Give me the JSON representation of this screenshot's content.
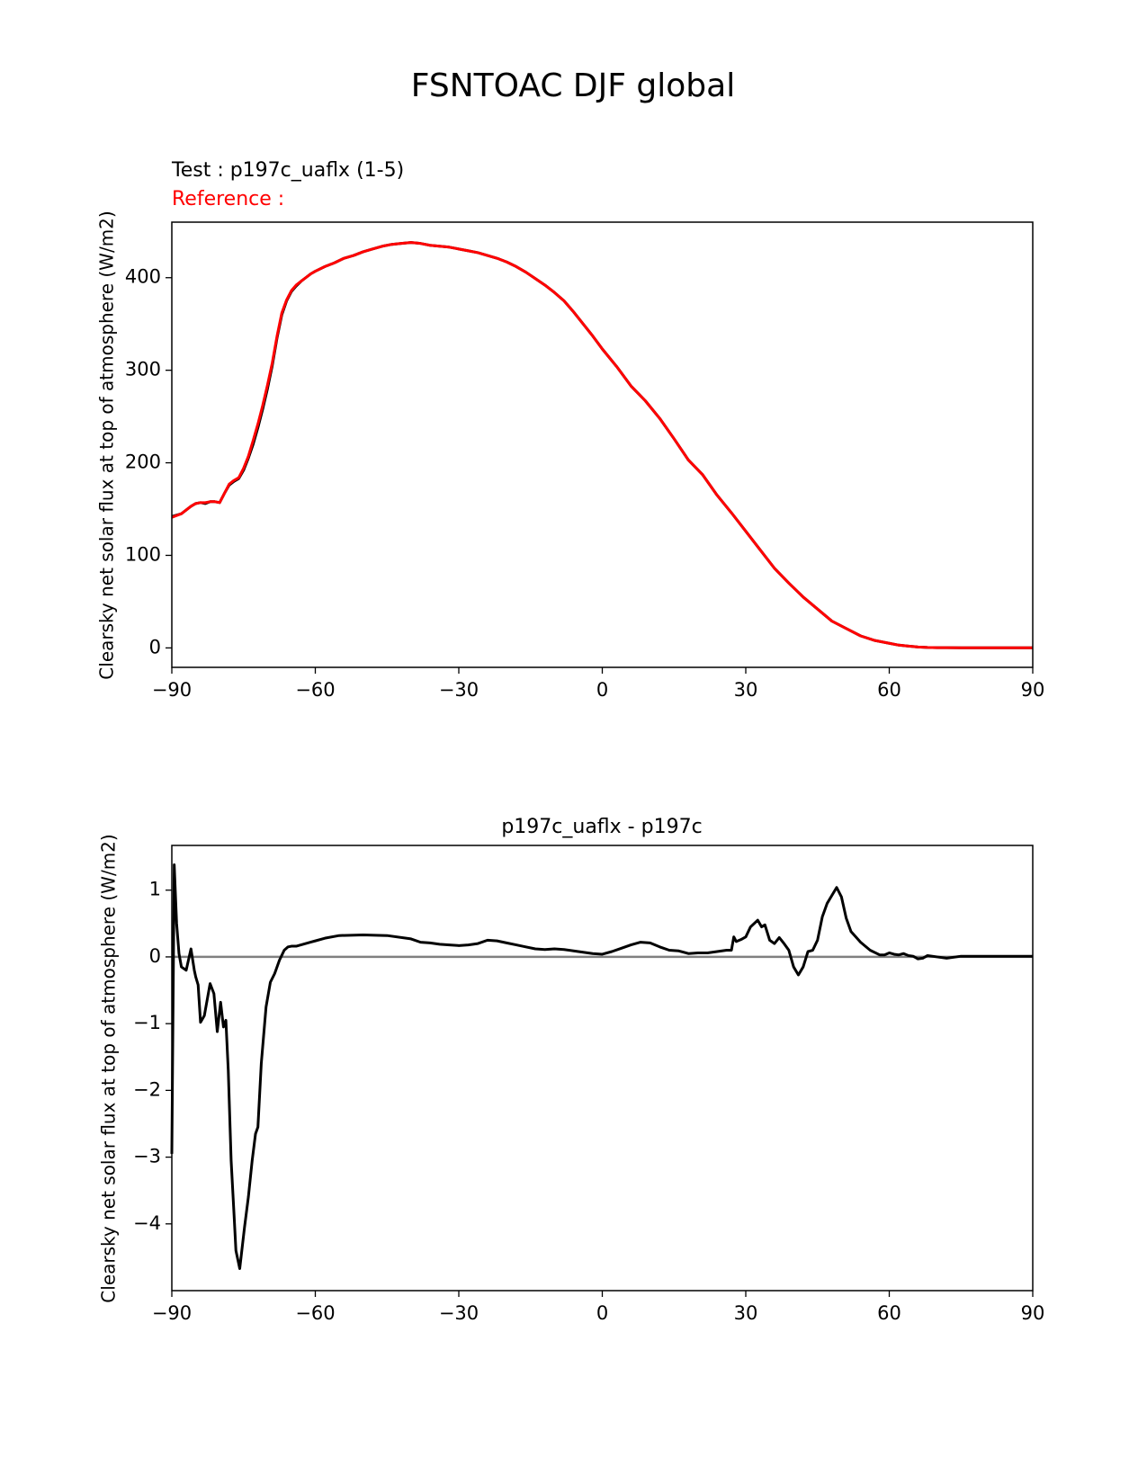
{
  "figure": {
    "title": "FSNTOAC DJF global"
  },
  "chart_data": [
    {
      "type": "line",
      "test_label": "Test : p197c_uaflx (1-5)",
      "reference_label": "Reference :",
      "xlabel": "",
      "ylabel": "Clearsky net solar flux at top of atmosphere (W/m2)",
      "xlim": [
        -90,
        90
      ],
      "ylim": [
        -21,
        460
      ],
      "xticks": [
        -90,
        -60,
        -30,
        0,
        30,
        60,
        90
      ],
      "yticks": [
        0,
        100,
        200,
        300,
        400
      ],
      "series": [
        {
          "name": "test",
          "color": "#000000",
          "x": [
            -90,
            -88,
            -86,
            -85,
            -84,
            -83,
            -82,
            -81,
            -80,
            -79,
            -78,
            -77,
            -76,
            -75,
            -74,
            -73,
            -72,
            -71,
            -70,
            -69,
            -68,
            -67,
            -66,
            -65,
            -64,
            -63,
            -62,
            -61,
            -60,
            -58,
            -56,
            -54,
            -52,
            -50,
            -48,
            -46,
            -44,
            -42,
            -40,
            -38,
            -36,
            -34,
            -32,
            -30,
            -28,
            -26,
            -24,
            -22,
            -20,
            -18,
            -16,
            -14,
            -12,
            -10,
            -8,
            -6,
            -4,
            -2,
            0,
            3,
            6,
            9,
            12,
            15,
            18,
            21,
            24,
            27,
            30,
            33,
            36,
            39,
            42,
            45,
            48,
            51,
            54,
            57,
            60,
            62,
            64,
            66,
            68,
            70,
            72,
            75,
            78,
            81,
            84,
            87,
            90
          ],
          "values": [
            142,
            145,
            153,
            156,
            157,
            156,
            158,
            158,
            157,
            167,
            176,
            180,
            183,
            192,
            205,
            220,
            238,
            258,
            280,
            305,
            335,
            360,
            375,
            385,
            391,
            396,
            400,
            404,
            407,
            412,
            416,
            421,
            424,
            428,
            431,
            434,
            436,
            437,
            438,
            437,
            435,
            434,
            433,
            431,
            429,
            427,
            424,
            421,
            417,
            412,
            406,
            399,
            392,
            384,
            375,
            363,
            350,
            337,
            323,
            304,
            283,
            267,
            248,
            226,
            203,
            187,
            165,
            146,
            126,
            106,
            86,
            70,
            55,
            42,
            29,
            21,
            13,
            8,
            5,
            3,
            2,
            1,
            0.5,
            0.3,
            0.2,
            0.1,
            0.1,
            0.1,
            0.1,
            0.1,
            0.1
          ]
        },
        {
          "name": "reference",
          "color": "#ff0000",
          "x": [
            -90,
            -88,
            -86,
            -85,
            -84,
            -83,
            -82,
            -81,
            -80,
            -79,
            -78,
            -77,
            -76,
            -75,
            -74,
            -73,
            -72,
            -71,
            -70,
            -69,
            -68,
            -67,
            -66,
            -65,
            -64,
            -63,
            -62,
            -61,
            -60,
            -58,
            -56,
            -54,
            -52,
            -50,
            -48,
            -46,
            -44,
            -42,
            -40,
            -38,
            -36,
            -34,
            -32,
            -30,
            -28,
            -26,
            -24,
            -22,
            -20,
            -18,
            -16,
            -14,
            -12,
            -10,
            -8,
            -6,
            -4,
            -2,
            0,
            3,
            6,
            9,
            12,
            15,
            18,
            21,
            24,
            27,
            30,
            33,
            36,
            39,
            42,
            45,
            48,
            51,
            54,
            57,
            60,
            62,
            64,
            66,
            68,
            70,
            72,
            75,
            78,
            81,
            84,
            87,
            90
          ],
          "values": [
            141,
            145,
            153,
            156,
            157,
            157,
            158,
            158,
            157,
            167,
            177,
            181,
            184,
            194,
            207,
            224,
            242,
            262,
            284,
            308,
            337,
            362,
            376,
            386,
            392,
            396,
            400,
            404,
            407,
            412,
            416,
            421,
            424,
            428,
            431,
            434,
            436,
            437,
            438,
            437,
            435,
            434,
            433,
            431,
            429,
            427,
            424,
            421,
            417,
            412,
            406,
            399,
            392,
            384,
            375,
            363,
            350,
            337,
            323,
            304,
            283,
            267,
            248,
            226,
            203,
            187,
            165,
            146,
            126,
            106,
            86,
            70,
            55,
            42,
            29,
            21,
            13,
            8,
            5,
            3,
            2,
            1,
            0.5,
            0.3,
            0.2,
            0.1,
            0.1,
            0.1,
            0.1,
            0.1,
            0.1
          ]
        }
      ]
    },
    {
      "type": "line",
      "title": "p197c_uaflx - p197c",
      "xlabel": "",
      "ylabel": "Clearsky net solar flux at top of atmosphere (W/m2)",
      "xlim": [
        -90,
        90
      ],
      "ylim": [
        -5,
        1.67
      ],
      "xticks": [
        -90,
        -60,
        -30,
        0,
        30,
        60,
        90
      ],
      "yticks": [
        -4,
        -3,
        -2,
        -1,
        0,
        1
      ],
      "zero_line_color": "#808080",
      "series": [
        {
          "name": "difference",
          "color": "#000000",
          "x": [
            -90,
            -89.5,
            -89,
            -88.5,
            -88,
            -87,
            -86,
            -85.3,
            -85,
            -84.5,
            -84,
            -83.2,
            -82,
            -81.2,
            -80.5,
            -79.8,
            -79.2,
            -78.7,
            -78.2,
            -77.6,
            -77,
            -76.6,
            -75.8,
            -74.8,
            -74,
            -73.2,
            -72.5,
            -72,
            -71.3,
            -70.3,
            -69.4,
            -68.5,
            -67.5,
            -66.5,
            -65.7,
            -65,
            -64,
            -63,
            -62,
            -61,
            -60,
            -58,
            -55,
            -50,
            -45,
            -40,
            -38,
            -36,
            -34,
            -32,
            -30,
            -28,
            -26,
            -24,
            -22,
            -20,
            -18,
            -16,
            -14,
            -12,
            -10,
            -8,
            -6,
            -4,
            -2,
            0,
            2,
            4,
            6,
            8,
            10,
            12,
            14,
            16,
            18,
            20,
            22,
            24,
            26,
            27,
            27.5,
            28,
            29,
            30,
            31,
            32.5,
            33.3,
            34,
            35,
            36,
            37,
            38,
            39,
            40,
            41,
            42,
            43,
            44,
            45,
            46,
            47,
            48,
            49,
            50,
            51,
            52,
            53,
            54,
            56,
            58,
            59,
            60,
            61,
            62,
            63,
            64,
            65,
            66,
            67,
            68,
            70,
            72,
            75,
            80,
            85,
            90
          ],
          "values": [
            -2.95,
            1.38,
            0.5,
            0.05,
            -0.15,
            -0.2,
            0.12,
            -0.2,
            -0.3,
            -0.42,
            -0.98,
            -0.88,
            -0.4,
            -0.55,
            -1.12,
            -0.68,
            -1.05,
            -0.95,
            -1.7,
            -3.05,
            -3.85,
            -4.4,
            -4.67,
            -4.05,
            -3.6,
            -3.05,
            -2.65,
            -2.55,
            -1.6,
            -0.75,
            -0.38,
            -0.25,
            -0.05,
            0.1,
            0.15,
            0.16,
            0.16,
            0.18,
            0.2,
            0.22,
            0.24,
            0.28,
            0.32,
            0.33,
            0.32,
            0.27,
            0.22,
            0.21,
            0.19,
            0.18,
            0.17,
            0.18,
            0.2,
            0.25,
            0.24,
            0.21,
            0.18,
            0.15,
            0.12,
            0.11,
            0.12,
            0.11,
            0.09,
            0.07,
            0.05,
            0.04,
            0.08,
            0.13,
            0.18,
            0.22,
            0.21,
            0.15,
            0.1,
            0.09,
            0.05,
            0.06,
            0.06,
            0.08,
            0.1,
            0.1,
            0.3,
            0.23,
            0.26,
            0.3,
            0.45,
            0.55,
            0.45,
            0.48,
            0.25,
            0.2,
            0.29,
            0.2,
            0.1,
            -0.15,
            -0.27,
            -0.15,
            0.08,
            0.1,
            0.25,
            0.6,
            0.8,
            0.92,
            1.04,
            0.9,
            0.58,
            0.38,
            0.3,
            0.22,
            0.1,
            0.03,
            0.03,
            0.06,
            0.04,
            0.03,
            0.05,
            0.02,
            0.01,
            -0.03,
            -0.02,
            0.02,
            0.0,
            -0.02,
            0.01,
            0.01,
            0.01,
            0.01
          ]
        }
      ]
    }
  ]
}
